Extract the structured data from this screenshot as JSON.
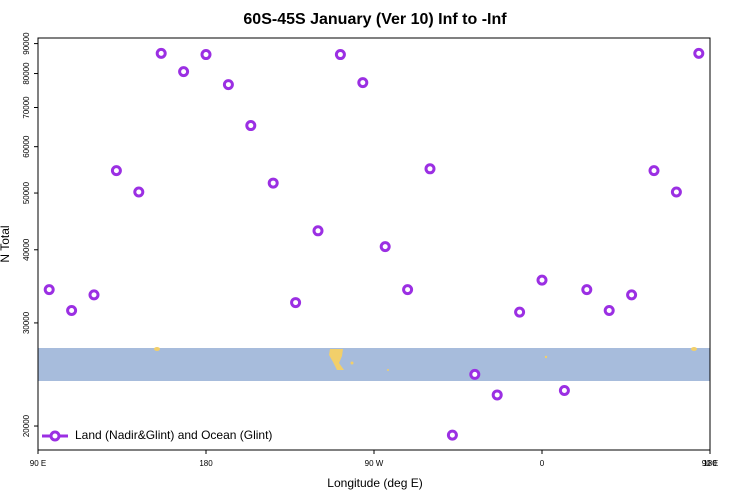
{
  "chart_data": {
    "type": "scatter",
    "title": "60S-45S January (Ver 10)   Inf to -Inf",
    "x_label": "Longitude (deg E)",
    "y_label": "N Total",
    "x": [
      96,
      108,
      120,
      132,
      144,
      156,
      168,
      180,
      192,
      204,
      216,
      228,
      240,
      252,
      264,
      276,
      288,
      300,
      312,
      324,
      336,
      348,
      360,
      372,
      384,
      396,
      408,
      420,
      432,
      444
    ],
    "series": [
      {
        "name": "Land (Nadir&Glint) and Ocean (Glint)",
        "color": "#9b2fe3",
        "values": [
          34200,
          31500,
          33500,
          54600,
          50200,
          86600,
          80600,
          86200,
          76600,
          65200,
          52000,
          32500,
          43100,
          86200,
          77200,
          40500,
          34200,
          55000,
          19300,
          24500,
          22600,
          31300,
          35500,
          23000,
          34200,
          31500,
          33500,
          54600,
          50200,
          86600
        ]
      }
    ],
    "xlim": [
      90,
      450
    ],
    "xticks": [
      {
        "value": 90,
        "label": "90 E"
      },
      180,
      {
        "value": 270,
        "label": "90 W"
      },
      {
        "value": 360,
        "label": "0"
      },
      {
        "value": 450,
        "label": "90 E"
      },
      {
        "value": 540,
        "label": "180"
      }
    ],
    "ylim": [
      18200,
      92000
    ],
    "yticks": [
      20000,
      30000,
      40000,
      50000,
      60000,
      70000,
      80000,
      90000
    ],
    "log_y": true,
    "legend": "bottom-left"
  }
}
